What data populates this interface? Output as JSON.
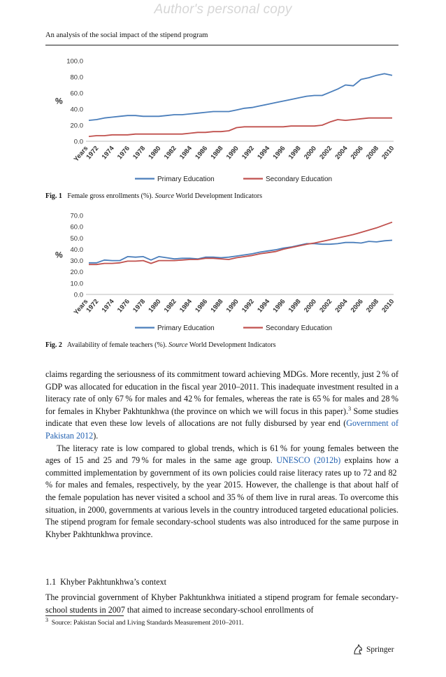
{
  "watermark": "Author's personal copy",
  "running_head": "An analysis of the social impact of the stipend program",
  "figures": [
    {
      "label": "Fig. 1",
      "caption_text": "Female gross enrollments (%).",
      "source_label": "Source",
      "source_text": "World Development Indicators"
    },
    {
      "label": "Fig. 2",
      "caption_text": "Availability of female teachers (%).",
      "source_label": "Source",
      "source_text": "World Development Indicators"
    }
  ],
  "chart_data": [
    {
      "type": "line",
      "title": "",
      "ylabel": "%",
      "ylim": [
        0,
        100
      ],
      "y_ticks": [
        "0.0",
        "20.0",
        "40.0",
        "60.0",
        "80.0",
        "100.0"
      ],
      "x_tick_labels": [
        "Years",
        "1972",
        "1974",
        "1976",
        "1978",
        "1980",
        "1982",
        "1984",
        "1986",
        "1988",
        "1990",
        "1992",
        "1994",
        "1996",
        "1998",
        "2000",
        "2002",
        "2004",
        "2006",
        "2008",
        "2010"
      ],
      "x": [
        1971,
        1972,
        1973,
        1974,
        1975,
        1976,
        1977,
        1978,
        1979,
        1980,
        1981,
        1982,
        1983,
        1984,
        1985,
        1986,
        1987,
        1988,
        1989,
        1990,
        1991,
        1992,
        1993,
        1994,
        1995,
        1996,
        1997,
        1998,
        1999,
        2000,
        2001,
        2002,
        2003,
        2004,
        2005,
        2006,
        2007,
        2008,
        2009,
        2010
      ],
      "legend_position": "bottom",
      "grid": false,
      "series": [
        {
          "name": "Primary Education",
          "color": "#4a7ebb",
          "values": [
            26,
            27,
            29,
            30,
            31,
            32,
            32,
            31,
            31,
            31,
            32,
            33,
            33,
            34,
            35,
            36,
            37,
            37,
            37,
            39,
            41,
            42,
            44,
            46,
            48,
            50,
            52,
            54,
            56,
            57,
            57,
            61,
            65,
            70,
            69,
            77,
            79,
            82,
            84,
            82
          ]
        },
        {
          "name": "Secondary Education",
          "color": "#c0504d",
          "values": [
            6,
            7,
            7,
            8,
            8,
            8,
            9,
            9,
            9,
            9,
            9,
            9,
            9,
            10,
            11,
            11,
            12,
            12,
            13,
            17,
            18,
            18,
            18,
            18,
            18,
            18,
            19,
            19,
            19,
            19,
            20,
            24,
            27,
            26,
            27,
            28,
            29,
            29,
            29,
            29
          ]
        }
      ]
    },
    {
      "type": "line",
      "title": "",
      "ylabel": "%",
      "ylim": [
        0,
        70
      ],
      "y_ticks": [
        "0.0",
        "10.0",
        "20.0",
        "30.0",
        "40.0",
        "50.0",
        "60.0",
        "70.0"
      ],
      "x_tick_labels": [
        "Years",
        "1972",
        "1974",
        "1976",
        "1978",
        "1980",
        "1982",
        "1984",
        "1986",
        "1988",
        "1990",
        "1992",
        "1994",
        "1996",
        "1998",
        "2000",
        "2002",
        "2004",
        "2006",
        "2008",
        "2010"
      ],
      "x": [
        1971,
        1972,
        1973,
        1974,
        1975,
        1976,
        1977,
        1978,
        1979,
        1980,
        1981,
        1982,
        1983,
        1984,
        1985,
        1986,
        1987,
        1988,
        1989,
        1990,
        1991,
        1992,
        1993,
        1994,
        1995,
        1996,
        1997,
        1998,
        1999,
        2000,
        2001,
        2002,
        2003,
        2004,
        2005,
        2006,
        2007,
        2008,
        2009,
        2010
      ],
      "legend_position": "bottom",
      "grid": false,
      "series": [
        {
          "name": "Primary Education",
          "color": "#4a7ebb",
          "values": [
            28,
            28,
            30.5,
            30,
            30,
            33.5,
            33,
            33.5,
            30.5,
            33.5,
            32.5,
            31.5,
            32,
            32,
            31.5,
            33,
            33,
            32.5,
            33,
            34,
            35,
            36,
            37.5,
            38.5,
            39.5,
            41,
            42,
            43.5,
            45,
            45,
            44.5,
            44.5,
            45,
            46,
            46,
            45.5,
            47,
            46.5,
            47.5,
            48
          ]
        },
        {
          "name": "Secondary Education",
          "color": "#c0504d",
          "values": [
            26.5,
            26.5,
            27.5,
            27.5,
            28,
            29.5,
            29.5,
            30,
            27.5,
            30,
            30,
            30,
            30.5,
            31,
            31,
            32,
            32,
            31.5,
            31,
            32.5,
            33.5,
            34.5,
            36,
            37,
            38,
            40,
            41.5,
            43,
            44.5,
            45.5,
            47,
            48.5,
            50,
            51.5,
            53,
            55,
            57,
            59,
            61.5,
            64
          ]
        }
      ]
    }
  ],
  "paragraphs": [
    {
      "t1": "claims regarding the seriousness of its commitment toward achieving MDGs. More recently, just 2 % of GDP was allocated for education in the fiscal year 2010–2011. This inadequate investment resulted in a literacy rate of only 67 % for males and 42 % for females, whereas the rate is 65 % for males and 28 % for females in Khyber Pakhtunkhwa (the province on which we will focus in this paper).",
      "fn": "3",
      "t2": " Some studies indicate that even these low levels of allocations are not fully disbursed by year end (",
      "link": "Government of Pakistan 2012",
      "t3": ")."
    },
    {
      "t1": "The literacy rate is low compared to global trends, which is 61 % for young females between the ages of 15 and 25 and 79 % for males in the same age group. ",
      "link": "UNESCO (2012b)",
      "t2": " explains how a committed implementation by government of its own policies could raise literacy rates up to 72 and 82 % for males and females, respectively, by the year 2015. However, the challenge is that about half of the female population has never visited a school and 35 % of them live in rural areas. To overcome this situation, in 2000, governments at various levels in the country introduced targeted educational policies. The stipend program for female secondary-school students was also introduced for the same purpose in Khyber Pakhtunkhwa province."
    }
  ],
  "section": {
    "number": "1.1",
    "title": "Khyber Pakhtunkhwa’s context"
  },
  "paragraph3": "The provincial government of Khyber Pakhtunkhwa initiated a stipend program for female secondary-school students in 2007 that aimed to increase secondary-school enrollments of",
  "footnote": {
    "number": "3",
    "text": "Source: Pakistan Social and Living Standards Measurement 2010–2011."
  },
  "publisher": "Springer"
}
